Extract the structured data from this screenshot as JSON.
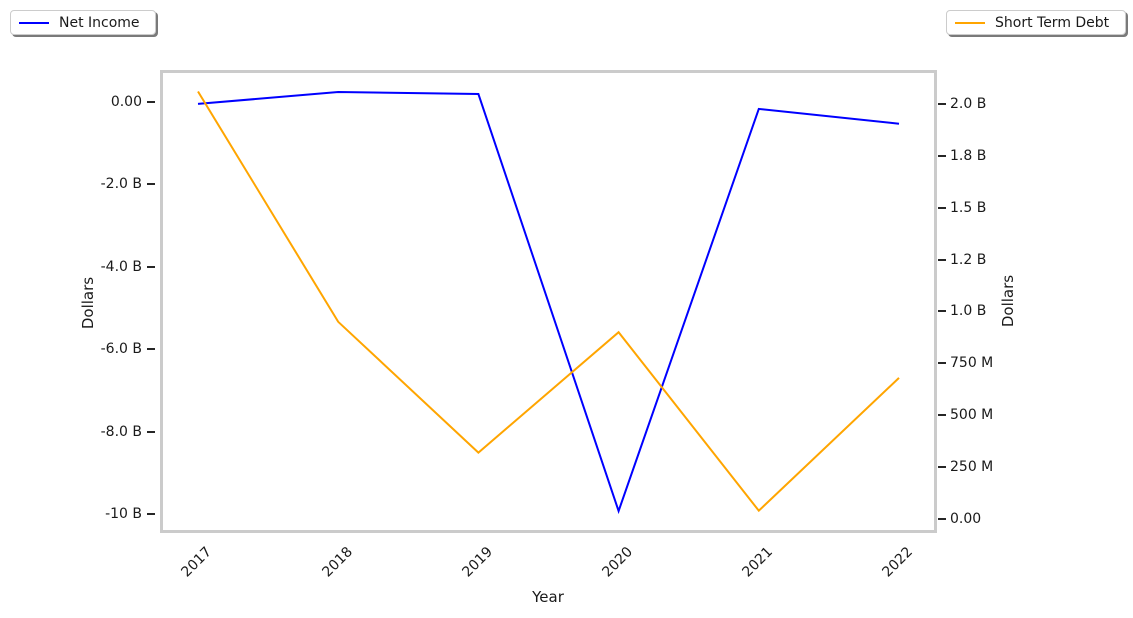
{
  "figure": {
    "background_color": "#ffffff",
    "frame_color": "#cbcbcb",
    "text_color": "#1a1a1a",
    "legend_left": {
      "label": "Net Income",
      "line_color": "#0000ff"
    },
    "legend_right": {
      "label": "Short Term Debt",
      "line_color": "#ffa500"
    },
    "xlabel": "Year",
    "ylabel_left": "Dollars",
    "ylabel_right": "Dollars"
  },
  "chart_data": {
    "type": "line",
    "title": "",
    "xlabel": "Year",
    "ylabel_left": "Dollars",
    "ylabel_right": "Dollars",
    "grid": false,
    "legend_position": "Net Income outside top-left, Short Term Debt outside top-right",
    "x": [
      2017,
      2018,
      2019,
      2020,
      2021,
      2022
    ],
    "series": [
      {
        "name": "Net Income",
        "axis": "left",
        "color": "#0000ff",
        "values_billions": [
          -0.05,
          0.24,
          0.19,
          -9.93,
          -0.17,
          -0.53
        ]
      },
      {
        "name": "Short Term Debt",
        "axis": "right",
        "color": "#ffa500",
        "values_billions": [
          2.06,
          0.95,
          0.32,
          0.9,
          0.04,
          0.68
        ]
      }
    ],
    "xlim": [
      2016.75,
      2022.25
    ],
    "ylim_left_billions": [
      -10.39,
      0.7
    ],
    "ylim_right_billions": [
      -0.053,
      2.149
    ],
    "xticks": [
      {
        "value": 2017,
        "label": "2017"
      },
      {
        "value": 2018,
        "label": "2018"
      },
      {
        "value": 2019,
        "label": "2019"
      },
      {
        "value": 2020,
        "label": "2020"
      },
      {
        "value": 2021,
        "label": "2021"
      },
      {
        "value": 2022,
        "label": "2022"
      }
    ],
    "yticks_left": [
      {
        "value": 0,
        "label": "0.00"
      },
      {
        "value": -2,
        "label": "-2.0 B"
      },
      {
        "value": -4,
        "label": "-4.0 B"
      },
      {
        "value": -6,
        "label": "-6.0 B"
      },
      {
        "value": -8,
        "label": "-8.0 B"
      },
      {
        "value": -10,
        "label": "-10 B"
      }
    ],
    "yticks_right": [
      {
        "value": 2.0,
        "label": "2.0 B"
      },
      {
        "value": 1.75,
        "label": "1.8 B"
      },
      {
        "value": 1.5,
        "label": "1.5 B"
      },
      {
        "value": 1.25,
        "label": "1.2 B"
      },
      {
        "value": 1.0,
        "label": "1.0 B"
      },
      {
        "value": 0.75,
        "label": "750 M"
      },
      {
        "value": 0.5,
        "label": "500 M"
      },
      {
        "value": 0.25,
        "label": "250 M"
      },
      {
        "value": 0,
        "label": "0.00"
      }
    ]
  }
}
